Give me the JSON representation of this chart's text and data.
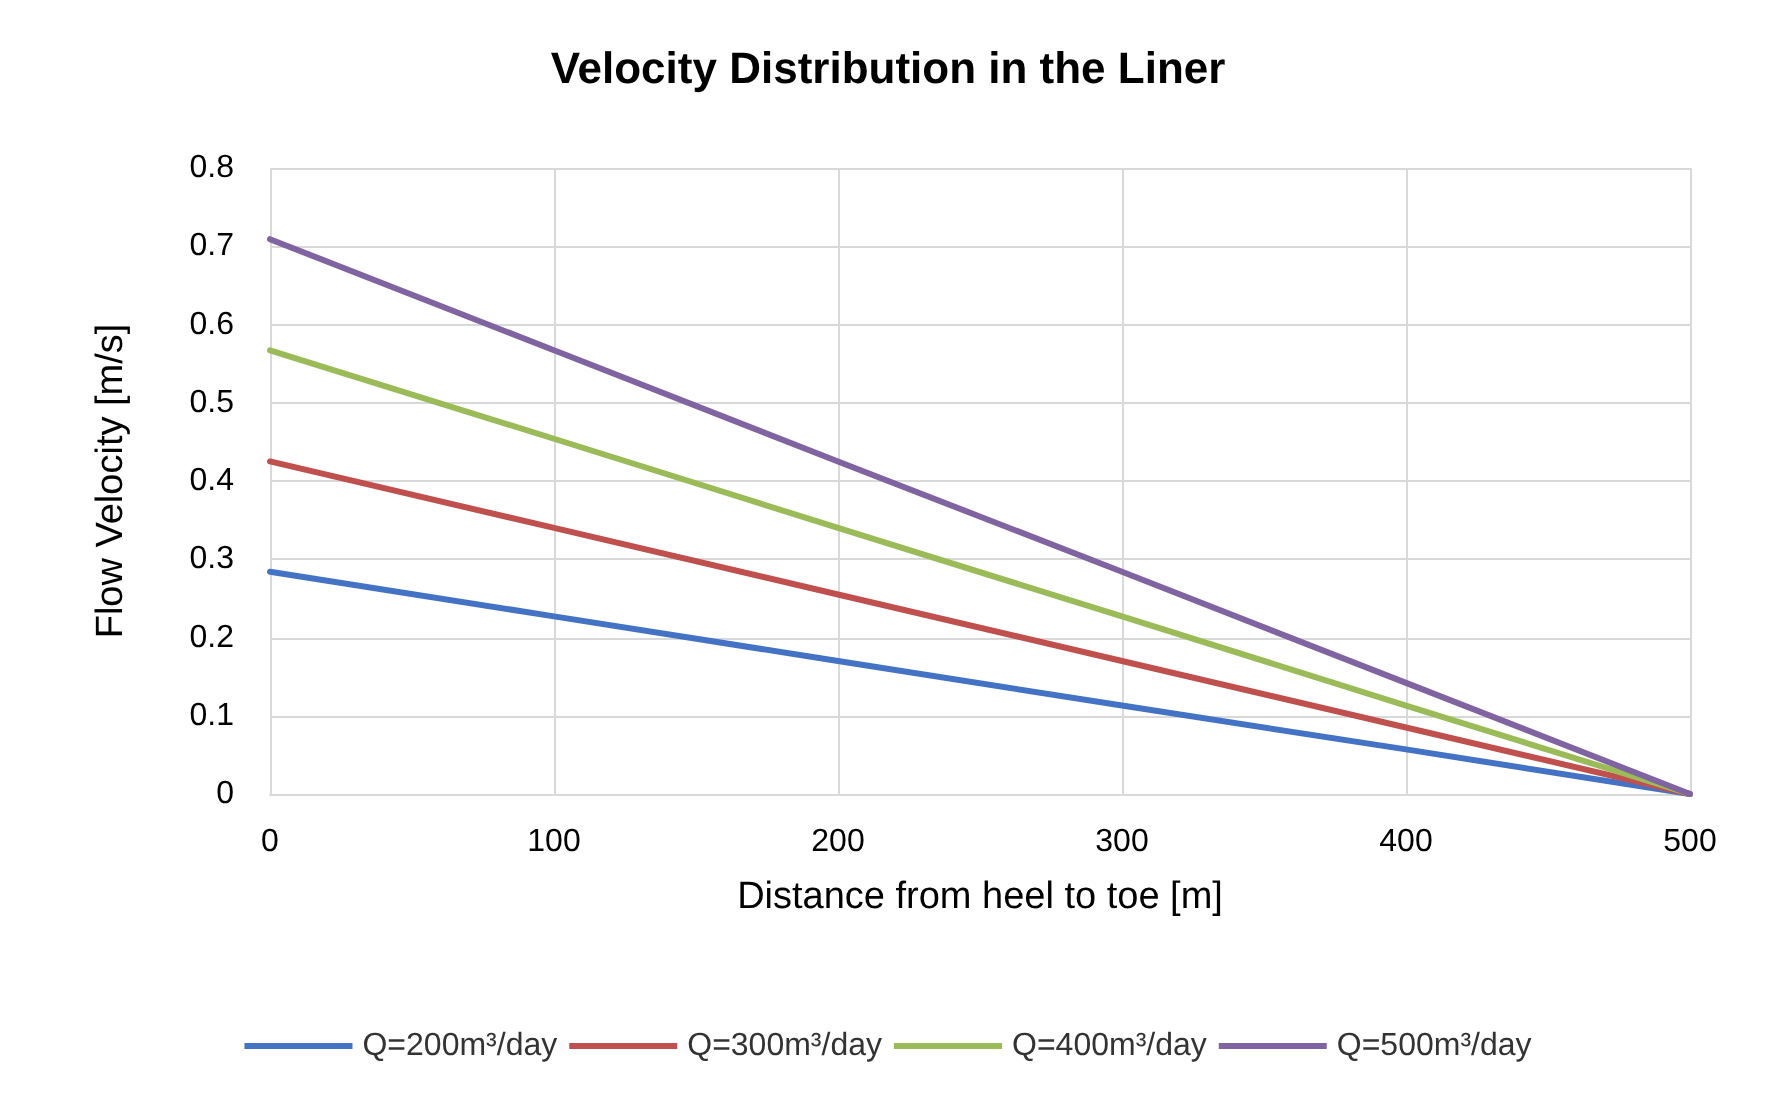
{
  "chart_data": {
    "type": "line",
    "title": "Velocity Distribution in the Liner",
    "xlabel": "Distance from heel to toe [m]",
    "ylabel": "Flow Velocity [m/s]",
    "x": [
      0,
      100,
      200,
      300,
      400,
      500
    ],
    "series": [
      {
        "name": "Q=200m³/day",
        "color": "#4472c4",
        "values": [
          0.284,
          0.227,
          0.17,
          0.113,
          0.057,
          0
        ]
      },
      {
        "name": "Q=300m³/day",
        "color": "#c0504d",
        "values": [
          0.425,
          0.34,
          0.255,
          0.17,
          0.085,
          0
        ]
      },
      {
        "name": "Q=400m³/day",
        "color": "#9bbb59",
        "values": [
          0.567,
          0.454,
          0.34,
          0.227,
          0.113,
          0
        ]
      },
      {
        "name": "Q=500m³/day",
        "color": "#8064a2",
        "values": [
          0.709,
          0.567,
          0.425,
          0.284,
          0.142,
          0
        ]
      }
    ],
    "xlim": [
      0,
      500
    ],
    "xticks": [
      0,
      100,
      200,
      300,
      400,
      500
    ],
    "ylim": [
      0,
      0.8
    ],
    "yticks": [
      0,
      0.1,
      0.2,
      0.3,
      0.4,
      0.5,
      0.6,
      0.7,
      0.8
    ],
    "grid": true,
    "legend": "bottom",
    "marker": "none",
    "line_style": "solid"
  }
}
